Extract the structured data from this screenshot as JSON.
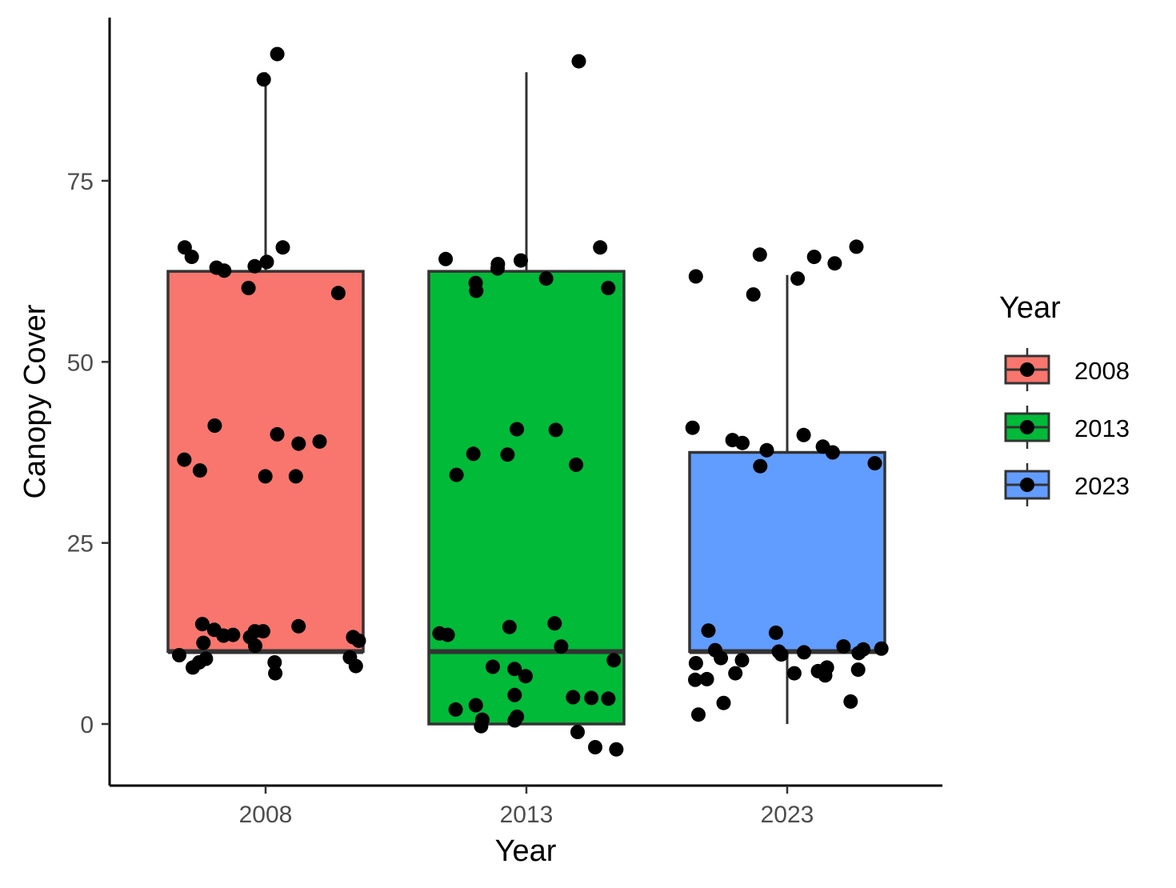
{
  "chart_data": {
    "type": "boxplot",
    "xlabel": "Year",
    "ylabel": "Canopy Cover",
    "categories": [
      "2008",
      "2013",
      "2023"
    ],
    "ylim": [
      -8,
      97
    ],
    "yticks": [
      0,
      25,
      50,
      75
    ],
    "grid": false,
    "legend": {
      "title": "Year",
      "position": "right",
      "labels": [
        "2008",
        "2013",
        "2023"
      ]
    },
    "colors": {
      "2008": "#F8766D",
      "2013": "#00BA38",
      "2023": "#619CFF",
      "box_outline": "#333333",
      "point": "#000000"
    },
    "boxes": [
      {
        "category": "2008",
        "min": 10,
        "q1": 10,
        "median": 10,
        "q3": 62.5,
        "max": 90
      },
      {
        "category": "2013",
        "min": 0,
        "q1": 0,
        "median": 10,
        "q3": 62.5,
        "max": 90
      },
      {
        "category": "2023",
        "min": 0,
        "q1": 10,
        "median": 10,
        "q3": 37.5,
        "max": 62
      }
    ],
    "points": [
      {
        "category": "2008",
        "values": [
          89,
          92.5,
          64.5,
          63,
          63.2,
          63.8,
          65.8,
          59.5,
          65.8,
          60.2,
          62.6,
          39,
          34.2,
          36.5,
          34.2,
          41.2,
          38.7,
          35,
          40,
          12.8,
          11.2,
          9.5,
          9.2,
          8,
          7.8,
          12.8,
          12,
          9,
          12,
          7,
          13.5,
          12.2,
          13.8,
          11.5,
          10.8,
          13,
          8.5,
          12.3,
          8.5
        ]
      },
      {
        "category": "2013",
        "values": [
          91.5,
          63.5,
          62.9,
          64.2,
          60.2,
          59.8,
          65.8,
          64,
          60.9,
          61.5,
          37.2,
          35.8,
          40.6,
          34.4,
          37.3,
          40.7,
          12.3,
          12.5,
          13.4,
          10.7,
          13.9,
          8.8,
          7.9,
          7.6,
          6.6,
          4,
          3.6,
          1,
          0.5,
          -0.3,
          2.6,
          3.7,
          2,
          0.6,
          -1.1,
          -3.2,
          -3.5,
          3.5
        ]
      },
      {
        "category": "2023",
        "values": [
          65.9,
          63.6,
          64.5,
          61.5,
          61.8,
          59.3,
          64.8,
          39.2,
          37.8,
          38.3,
          37.5,
          38.8,
          36,
          40.9,
          35.6,
          39.9,
          12.6,
          12.9,
          10.4,
          10,
          9.8,
          9.9,
          9.6,
          10.2,
          10.7,
          10.3,
          8.8,
          8.4,
          9.1,
          7.8,
          6.7,
          7.3,
          7.5,
          7,
          3.1,
          2.9,
          1.3,
          6.2,
          6.1,
          7
        ]
      }
    ]
  }
}
